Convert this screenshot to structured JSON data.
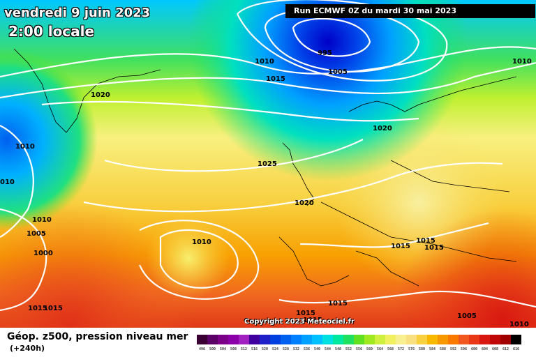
{
  "header": {
    "date": "vendredi 9 juin 2023",
    "time": "2:00 locale",
    "run": "Run ECMWF 0Z du mardi 30 mai 2023"
  },
  "copyright": "Copyright 2023 Meteociel.fr",
  "legend": {
    "title": "Géop. z500, pression niveau mer",
    "subtitle": "(+240h)",
    "scale_values": [
      "496",
      "500",
      "504",
      "508",
      "512",
      "516",
      "520",
      "524",
      "528",
      "532",
      "536",
      "540",
      "544",
      "548",
      "552",
      "556",
      "560",
      "564",
      "568",
      "572",
      "576",
      "580",
      "584",
      "588",
      "592",
      "596",
      "600",
      "604",
      "608",
      "612",
      "616"
    ],
    "scale_colors": [
      "#3a0033",
      "#5a0066",
      "#7a0088",
      "#8c00aa",
      "#a020c0",
      "#4000a0",
      "#2020c8",
      "#0040e0",
      "#0060f0",
      "#0080ff",
      "#00a0ff",
      "#00c0ff",
      "#00e0e0",
      "#00e8a0",
      "#20e060",
      "#60e020",
      "#a0e820",
      "#d0f040",
      "#f0f060",
      "#f8f090",
      "#f8e080",
      "#f8d040",
      "#f8b800",
      "#f89800",
      "#f87800",
      "#f05820",
      "#e83818",
      "#d81810",
      "#c00808",
      "#a00000",
      "#000000"
    ]
  },
  "isobars": [
    {
      "label": "995"
    },
    {
      "label": "1005"
    },
    {
      "label": "1010"
    },
    {
      "label": "1015"
    },
    {
      "label": "1020"
    },
    {
      "label": "1010"
    },
    {
      "label": "1020"
    },
    {
      "label": "1025"
    },
    {
      "label": "1020"
    },
    {
      "label": "1015"
    },
    {
      "label": "1015"
    },
    {
      "label": "1015"
    },
    {
      "label": "1010"
    },
    {
      "label": "1010"
    },
    {
      "label": "1005"
    },
    {
      "label": "1000"
    },
    {
      "label": "1010"
    },
    {
      "label": "1015"
    },
    {
      "label": "1015"
    },
    {
      "label": "1015"
    },
    {
      "label": "1005"
    },
    {
      "label": "1010"
    },
    {
      "label": "010"
    },
    {
      "label": "1015"
    },
    {
      "label": "1015"
    }
  ]
}
